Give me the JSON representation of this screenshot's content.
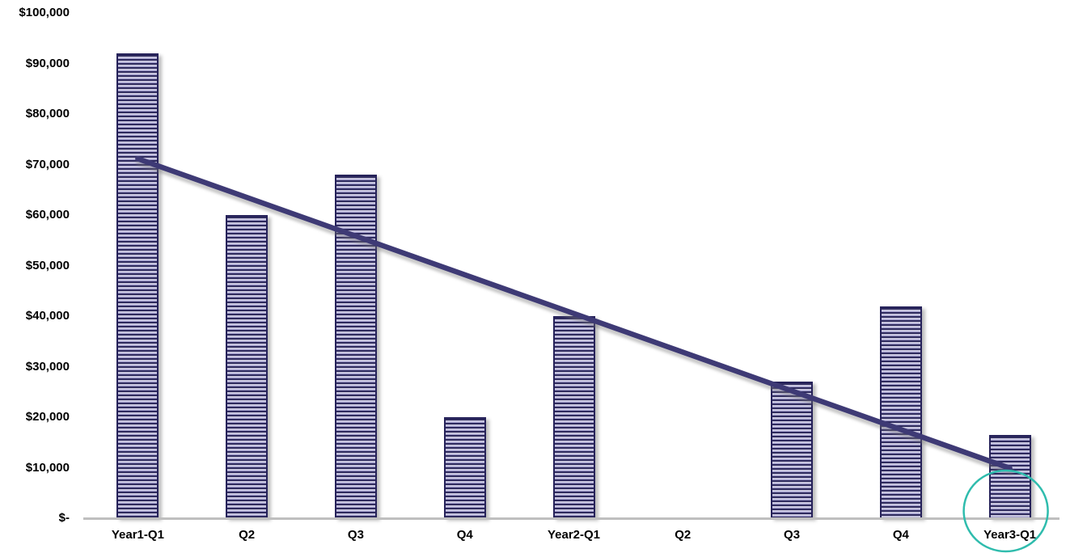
{
  "chart_data": {
    "type": "bar",
    "title": "",
    "xlabel": "",
    "ylabel": "",
    "categories": [
      "Year1-Q1",
      "Q2",
      "Q3",
      "Q4",
      "Year2-Q1",
      "Q2",
      "Q3",
      "Q4",
      "Year3-Q1"
    ],
    "values": [
      92000,
      60000,
      68000,
      20000,
      40000,
      0,
      27000,
      42000,
      16500
    ],
    "ylim": [
      0,
      100000
    ],
    "grid": false,
    "legend": false,
    "y_ticks": [
      {
        "value": 100000,
        "label": "$100,000"
      },
      {
        "value": 90000,
        "label": "$90,000"
      },
      {
        "value": 80000,
        "label": "$80,000"
      },
      {
        "value": 70000,
        "label": "$70,000"
      },
      {
        "value": 60000,
        "label": "$60,000"
      },
      {
        "value": 50000,
        "label": "$50,000"
      },
      {
        "value": 40000,
        "label": "$40,000"
      },
      {
        "value": 30000,
        "label": "$30,000"
      },
      {
        "value": 20000,
        "label": "$20,000"
      },
      {
        "value": 10000,
        "label": "$10,000"
      },
      {
        "value": 0,
        "label": "$-"
      }
    ],
    "trendline": {
      "type": "linear",
      "start_category": "Year1-Q1",
      "end_category": "Year3-Q1",
      "start_value": 71150,
      "end_value": 9900,
      "color": "#3E3A75"
    },
    "annotation": {
      "shape": "ellipse",
      "target_category": "Year3-Q1",
      "description": "teal circle highlighting base of last bar and its label",
      "color": "#2FBCAD"
    },
    "colors": {
      "bar_stripe_dark": "#2E2A5E",
      "bar_stripe_light": "#E8E7F3",
      "bar_stripe_mid": "#9894C6",
      "bar_border": "#26225A",
      "axis_line": "#BFBFBF",
      "text": "#000000",
      "background": "#FFFFFF"
    }
  }
}
